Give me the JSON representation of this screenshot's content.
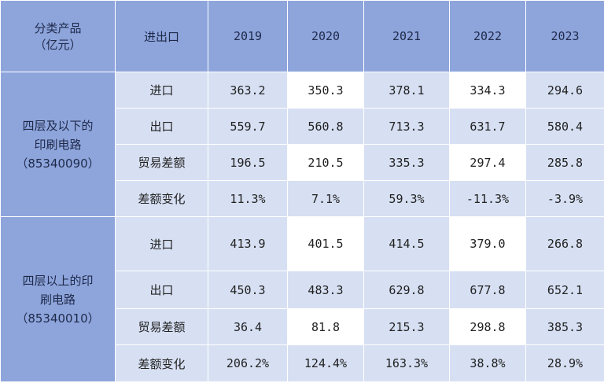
{
  "table": {
    "corner_line1": "分类产品",
    "corner_line2": "（亿元）",
    "col_header": "进出口",
    "years": [
      "2019",
      "2020",
      "2021",
      "2022",
      "2023"
    ],
    "groups": [
      {
        "name_lines": [
          "四层及以下的",
          "印刷电路",
          "（85340090）"
        ],
        "rows": [
          {
            "label": "进口",
            "values": [
              "363.2",
              "350.3",
              "378.1",
              "334.3",
              "294.6"
            ]
          },
          {
            "label": "出口",
            "values": [
              "559.7",
              "560.8",
              "713.3",
              "631.7",
              "580.4"
            ]
          },
          {
            "label": "贸易差额",
            "values": [
              "196.5",
              "210.5",
              "335.3",
              "297.4",
              "285.8"
            ]
          },
          {
            "label": "差额变化",
            "values": [
              "11.3%",
              "7.1%",
              "59.3%",
              "-11.3%",
              "-3.9%"
            ]
          }
        ]
      },
      {
        "name_lines": [
          "四层以上的印",
          "刷电路",
          "（85340010）"
        ],
        "rows": [
          {
            "label": "进口",
            "values": [
              "413.9",
              "401.5",
              "414.5",
              "379.0",
              "266.8"
            ]
          },
          {
            "label": "出口",
            "values": [
              "450.3",
              "483.3",
              "629.8",
              "677.8",
              "652.1"
            ]
          },
          {
            "label": "贸易差额",
            "values": [
              "36.4",
              "81.8",
              "215.3",
              "298.8",
              "385.3"
            ]
          },
          {
            "label": "差额变化",
            "values": [
              "206.2%",
              "124.4%",
              "163.3%",
              "38.8%",
              "28.9%"
            ]
          }
        ]
      }
    ]
  },
  "chart_data": {
    "type": "table",
    "title": "",
    "columns": [
      "分类产品（亿元）",
      "进出口",
      "2019",
      "2020",
      "2021",
      "2022",
      "2023"
    ],
    "rows": [
      [
        "四层及以下的印刷电路（85340090）",
        "进口",
        "363.2",
        "350.3",
        "378.1",
        "334.3",
        "294.6"
      ],
      [
        "四层及以下的印刷电路（85340090）",
        "出口",
        "559.7",
        "560.8",
        "713.3",
        "631.7",
        "580.4"
      ],
      [
        "四层及以下的印刷电路（85340090）",
        "贸易差额",
        "196.5",
        "210.5",
        "335.3",
        "297.4",
        "285.8"
      ],
      [
        "四层及以下的印刷电路（85340090）",
        "差额变化",
        "11.3%",
        "7.1%",
        "59.3%",
        "-11.3%",
        "-3.9%"
      ],
      [
        "四层以上的印刷电路（85340010）",
        "进口",
        "413.9",
        "401.5",
        "414.5",
        "379.0",
        "266.8"
      ],
      [
        "四层以上的印刷电路（85340010）",
        "出口",
        "450.3",
        "483.3",
        "629.8",
        "677.8",
        "652.1"
      ],
      [
        "四层以上的印刷电路（85340010）",
        "贸易差额",
        "36.4",
        "81.8",
        "215.3",
        "298.8",
        "385.3"
      ],
      [
        "四层以上的印刷电路（85340010）",
        "差额变化",
        "206.2%",
        "124.4%",
        "163.3%",
        "38.8%",
        "28.9%"
      ]
    ],
    "colors": {
      "header": "#8ea5dc",
      "light_cell": "#d7e0f3",
      "white_cell": "#ffffff"
    }
  }
}
